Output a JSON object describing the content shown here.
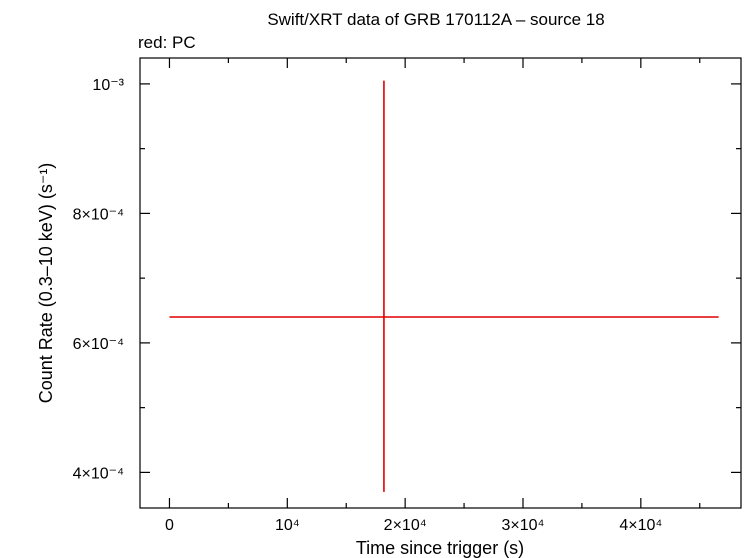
{
  "chart_data": {
    "type": "scatter",
    "title": "Swift/XRT data of GRB 170112A – source 18",
    "subtitle": "red: PC",
    "xlabel": "Time since trigger (s)",
    "ylabel": "Count Rate (0.3–10 keV) (s⁻¹)",
    "xlim": [
      -2500,
      48500
    ],
    "ylim": [
      0.000345,
      0.00104
    ],
    "x_ticks": [
      {
        "value": 0,
        "label": "0"
      },
      {
        "value": 10000,
        "label": "10⁴"
      },
      {
        "value": 20000,
        "label": "2×10⁴"
      },
      {
        "value": 30000,
        "label": "3×10⁴"
      },
      {
        "value": 40000,
        "label": "4×10⁴"
      }
    ],
    "y_ticks": [
      {
        "value": 0.0004,
        "label": "4×10⁻⁴"
      },
      {
        "value": 0.0006,
        "label": "6×10⁻⁴"
      },
      {
        "value": 0.0008,
        "label": "8×10⁻⁴"
      },
      {
        "value": 0.001,
        "label": "10⁻³"
      }
    ],
    "series": [
      {
        "color": "#e00000",
        "points": [
          {
            "x": 18200,
            "y": 0.00064,
            "xerr_minus": 18200,
            "xerr_plus": 28400,
            "yerr_minus": 0.00027,
            "yerr_plus": 0.000365
          }
        ]
      }
    ],
    "grid": false
  }
}
